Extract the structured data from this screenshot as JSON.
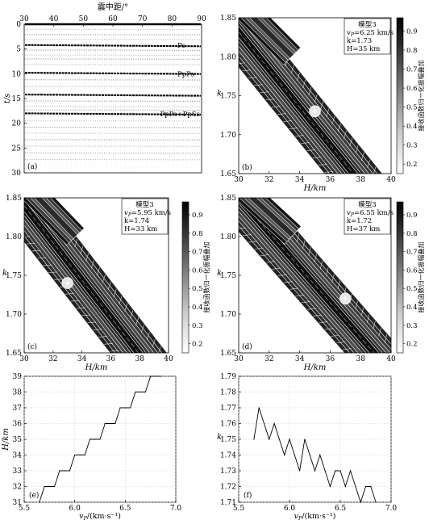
{
  "chart_data": [
    {
      "id": "a",
      "type": "line",
      "panel_label": "(a)",
      "xlabel": "震中距/°",
      "ylabel": "t/s",
      "xlim": [
        30,
        90
      ],
      "ylim": [
        30,
        0
      ],
      "xticks": [
        30,
        40,
        50,
        60,
        70,
        80,
        90
      ],
      "yticks": [
        0,
        5,
        10,
        15,
        20,
        25,
        30
      ],
      "phase_labels": [
        {
          "text": "Ps",
          "t": 4.2
        },
        {
          "text": "PpPs",
          "t": 10.0
        },
        {
          "text": "PpPs+PpSs",
          "t": 18.1
        }
      ],
      "strong_arrivals_t": [
        0,
        4.2,
        9.8,
        14.2,
        18.0
      ],
      "weak_arrivals_t": [
        1.0,
        2.1,
        3.0,
        5.2,
        6.2,
        7.0,
        8.1,
        11.2,
        12.6,
        15.5,
        16.6,
        17.3,
        19.5,
        20.8,
        22.0,
        23.3,
        24.6,
        26.0,
        27.3
      ]
    },
    {
      "id": "b",
      "type": "heatmap",
      "panel_label": "(b)",
      "xlabel": "H/km",
      "ylabel": "k",
      "xlim": [
        30,
        40
      ],
      "ylim": [
        1.65,
        1.85
      ],
      "xticks": [
        30,
        32,
        34,
        36,
        38,
        40
      ],
      "yticks": [
        1.65,
        1.7,
        1.75,
        1.8,
        1.85
      ],
      "colorbar": {
        "label": "接收函数归一化振幅叠加",
        "ticks": [
          0.2,
          0.3,
          0.4,
          0.5,
          0.6,
          0.7,
          0.8,
          0.9
        ],
        "range": [
          0.15,
          0.97
        ]
      },
      "info": {
        "model": "模型3",
        "vp": "v",
        "vp_sub": "P",
        "vp_val": "=6.25 km/s",
        "k": "k=1.73",
        "H": "H=35 km"
      },
      "best": {
        "H": 35,
        "k": 1.73
      },
      "band": {
        "k_at_Hmin": 1.832,
        "k_at_Hmax": 1.59,
        "H0": 30,
        "H1": 40
      }
    },
    {
      "id": "c",
      "type": "heatmap",
      "panel_label": "(c)",
      "xlabel": "H/km",
      "ylabel": "k",
      "xlim": [
        30,
        40
      ],
      "ylim": [
        1.65,
        1.85
      ],
      "xticks": [
        30,
        32,
        34,
        36,
        38,
        40
      ],
      "yticks": [
        1.65,
        1.7,
        1.75,
        1.8,
        1.85
      ],
      "colorbar": {
        "label": "接收函数归一化振幅叠加",
        "ticks": [
          0.2,
          0.3,
          0.4,
          0.5,
          0.6,
          0.7,
          0.8,
          0.9
        ],
        "range": [
          0.15,
          0.97
        ]
      },
      "info": {
        "model": "模型3",
        "vp": "v",
        "vp_sub": "P",
        "vp_val": "=5.95 km/s",
        "k": "k=1.74",
        "H": "H=33 km"
      },
      "best": {
        "H": 33,
        "k": 1.74
      },
      "band": {
        "k_at_Hmin": 1.84,
        "k_at_Hmax": 1.6,
        "H0": 30,
        "H1": 40
      }
    },
    {
      "id": "d",
      "type": "heatmap",
      "panel_label": "(d)",
      "xlabel": "H/km",
      "ylabel": "k",
      "xlim": [
        30,
        40
      ],
      "ylim": [
        1.65,
        1.85
      ],
      "xticks": [
        30,
        32,
        34,
        36,
        38,
        40
      ],
      "yticks": [
        1.65,
        1.7,
        1.75,
        1.8,
        1.85
      ],
      "colorbar": {
        "label": "接收函数归一化振幅叠加",
        "ticks": [
          0.2,
          0.3,
          0.4,
          0.5,
          0.6,
          0.7,
          0.8,
          0.9
        ],
        "range": [
          0.15,
          0.97
        ]
      },
      "info": {
        "model": "模型3",
        "vp": "v",
        "vp_sub": "P",
        "vp_val": "=6.55 km/s",
        "k": "k=1.72",
        "H": "H=37 km"
      },
      "best": {
        "H": 37,
        "k": 1.72
      },
      "band": {
        "k_at_Hmin": 1.85,
        "k_at_Hmax": 1.625,
        "H0": 30,
        "H1": 40
      }
    },
    {
      "id": "e",
      "type": "line",
      "panel_label": "(e)",
      "xlabel_main": "v",
      "xlabel_sub": "P",
      "xlabel_unit": "/(km·s⁻¹)",
      "ylabel": "H/km",
      "xlim": [
        5.5,
        7.0
      ],
      "ylim": [
        31,
        39
      ],
      "xticks": [
        5.5,
        6.0,
        6.5,
        7.0
      ],
      "yticks": [
        31,
        32,
        33,
        34,
        35,
        36,
        37,
        38,
        39
      ],
      "x": [
        5.65,
        5.7,
        5.75,
        5.8,
        5.85,
        5.9,
        5.95,
        6.0,
        6.05,
        6.1,
        6.15,
        6.2,
        6.25,
        6.3,
        6.35,
        6.4,
        6.45,
        6.5,
        6.55,
        6.6,
        6.65,
        6.7,
        6.75,
        6.8,
        6.85
      ],
      "y": [
        31,
        32,
        32,
        32,
        33,
        33,
        33,
        34,
        34,
        34,
        35,
        35,
        35,
        36,
        36,
        36,
        37,
        37,
        37,
        38,
        38,
        38,
        39,
        39,
        39
      ]
    },
    {
      "id": "f",
      "type": "line",
      "panel_label": "(f)",
      "xlabel_main": "v",
      "xlabel_sub": "P",
      "xlabel_unit": "/(km·s⁻¹)",
      "ylabel": "k",
      "xlim": [
        5.5,
        7.0
      ],
      "ylim": [
        1.71,
        1.79
      ],
      "xticks": [
        5.5,
        6.0,
        6.5,
        7.0
      ],
      "yticks": [
        1.71,
        1.72,
        1.73,
        1.74,
        1.75,
        1.76,
        1.77,
        1.78,
        1.79
      ],
      "x": [
        5.65,
        5.7,
        5.75,
        5.8,
        5.85,
        5.9,
        5.95,
        6.0,
        6.05,
        6.1,
        6.15,
        6.2,
        6.25,
        6.3,
        6.35,
        6.4,
        6.45,
        6.5,
        6.55,
        6.6,
        6.65,
        6.7,
        6.75,
        6.8,
        6.85
      ],
      "y": [
        1.75,
        1.77,
        1.76,
        1.75,
        1.76,
        1.75,
        1.74,
        1.75,
        1.74,
        1.73,
        1.75,
        1.74,
        1.73,
        1.74,
        1.73,
        1.72,
        1.73,
        1.73,
        1.72,
        1.73,
        1.72,
        1.71,
        1.72,
        1.72,
        1.71
      ]
    }
  ]
}
